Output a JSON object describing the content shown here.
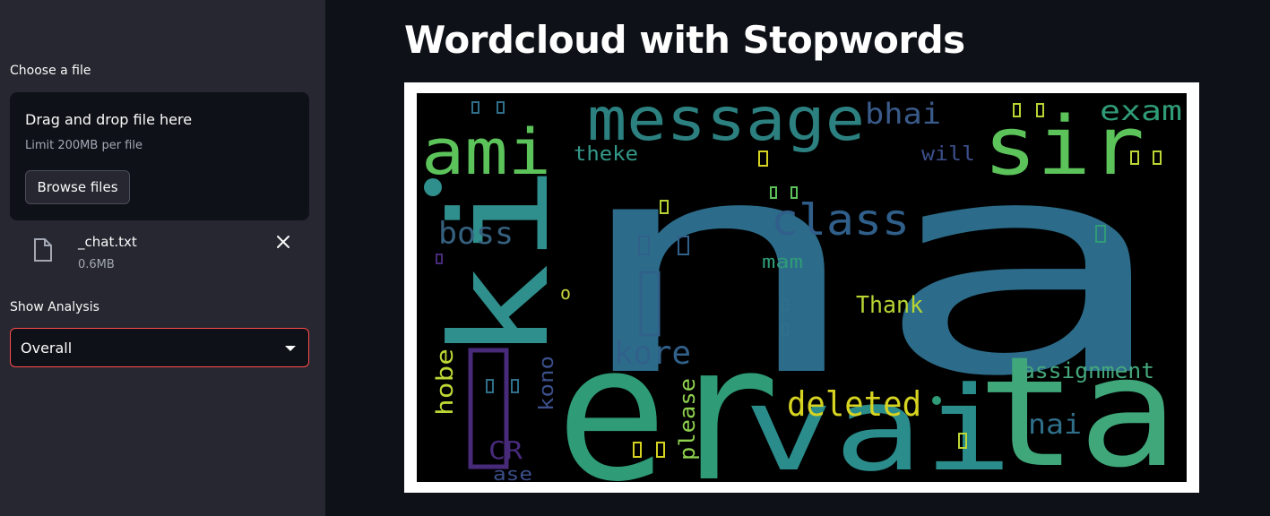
{
  "sidebar": {
    "file_label": "Choose a file",
    "dropzone": {
      "title": "Drag and drop file here",
      "limit": "Limit 200MB per file",
      "browse_label": "Browse files"
    },
    "uploaded_file": {
      "name": "_chat.txt",
      "size": "0.6MB"
    },
    "analysis_label": "Show Analysis",
    "analysis_select": {
      "value": "Overall"
    },
    "accent_color": "#ff4b4b"
  },
  "main": {
    "title": "Wordcloud with Stopwords",
    "wordcloud": {
      "words": [
        "na",
        "er",
        "vai",
        "ta",
        "ki",
        "sir",
        "message",
        "ami",
        "class",
        "boss",
        "bhai",
        "exam",
        "theke",
        "will",
        "mam",
        "Thank",
        "kore",
        "deleted",
        "assignment",
        "nai",
        "hobe",
        "CR",
        "kono",
        "please",
        "ase",
        "o"
      ]
    }
  },
  "icons": {
    "file": "file-icon",
    "close": "close-icon",
    "dropdown": "chevron-down-icon"
  }
}
